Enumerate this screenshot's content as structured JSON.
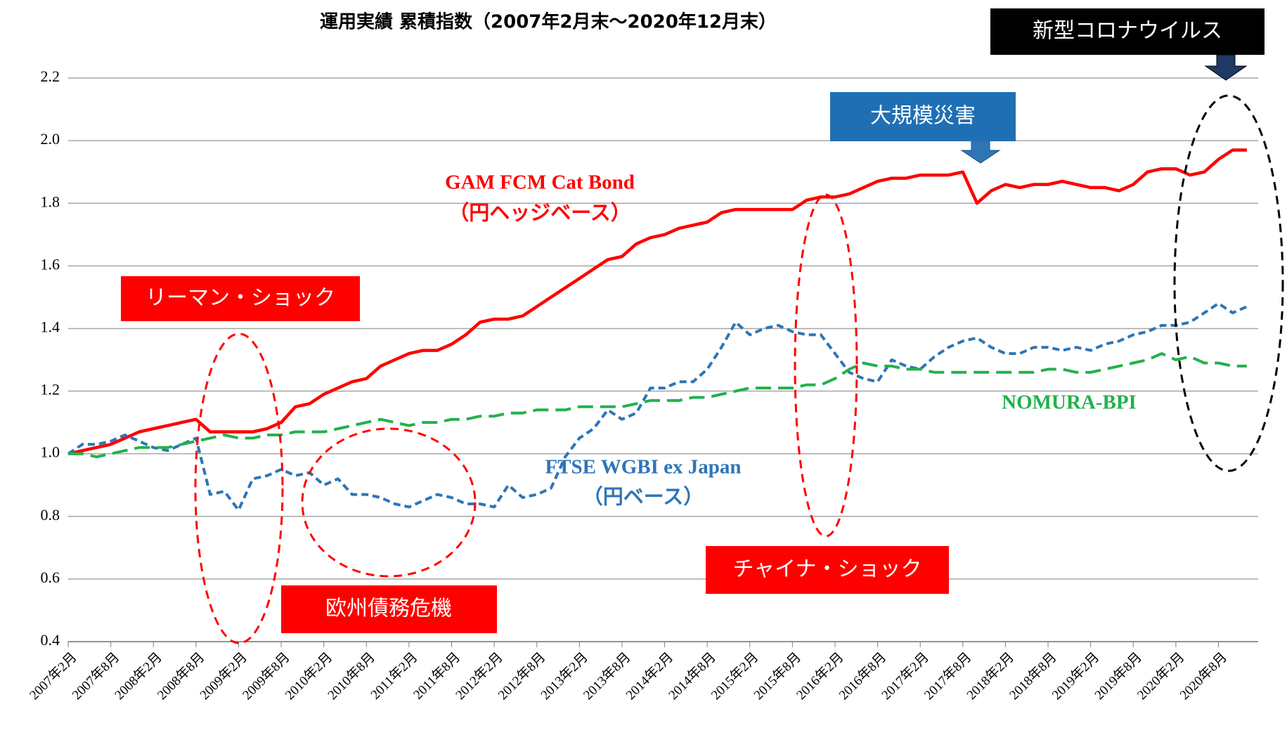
{
  "chart_data": {
    "type": "line",
    "title": "運用実績 累積指数（2007年2月末～2020年12月末）",
    "categories": [
      "2007年2月",
      null,
      null,
      "2007年8月",
      null,
      null,
      "2008年2月",
      null,
      null,
      "2008年8月",
      null,
      null,
      "2009年2月",
      null,
      null,
      "2009年8月",
      null,
      null,
      "2010年2月",
      null,
      null,
      "2010年8月",
      null,
      null,
      "2011年2月",
      null,
      null,
      "2011年8月",
      null,
      null,
      "2012年2月",
      null,
      null,
      "2012年8月",
      null,
      null,
      "2013年2月",
      null,
      null,
      "2013年8月",
      null,
      null,
      "2014年2月",
      null,
      null,
      "2014年8月",
      null,
      null,
      "2015年2月",
      null,
      null,
      "2015年8月",
      null,
      null,
      "2016年2月",
      null,
      null,
      "2016年8月",
      null,
      null,
      "2017年2月",
      null,
      null,
      "2017年8月",
      null,
      null,
      "2018年2月",
      null,
      null,
      "2018年8月",
      null,
      null,
      "2019年2月",
      null,
      null,
      "2019年8月",
      null,
      null,
      "2020年2月",
      null,
      null,
      "2020年8月",
      null,
      null
    ],
    "series": [
      {
        "name": "GAM FCM Cat  Bond",
        "subname": "（円ヘッジベース）",
        "color": "#ff0000",
        "values": [
          1.0,
          1.01,
          1.02,
          1.03,
          1.05,
          1.07,
          1.08,
          1.09,
          1.1,
          1.11,
          1.07,
          1.07,
          1.07,
          1.07,
          1.08,
          1.1,
          1.15,
          1.16,
          1.19,
          1.21,
          1.23,
          1.24,
          1.28,
          1.3,
          1.32,
          1.33,
          1.33,
          1.35,
          1.38,
          1.42,
          1.43,
          1.43,
          1.44,
          1.47,
          1.5,
          1.53,
          1.56,
          1.59,
          1.62,
          1.63,
          1.67,
          1.69,
          1.7,
          1.72,
          1.73,
          1.74,
          1.77,
          1.78,
          1.78,
          1.78,
          1.78,
          1.78,
          1.81,
          1.82,
          1.82,
          1.83,
          1.85,
          1.87,
          1.88,
          1.88,
          1.89,
          1.89,
          1.89,
          1.9,
          1.8,
          1.84,
          1.86,
          1.85,
          1.86,
          1.86,
          1.87,
          1.86,
          1.85,
          1.85,
          1.84,
          1.86,
          1.9,
          1.91,
          1.91,
          1.89,
          1.9,
          1.94,
          1.97,
          1.97
        ]
      },
      {
        "name": "FTSE WGBI ex Japan",
        "subname": "（円ベース）",
        "color": "#2e75b6",
        "values": [
          1.0,
          1.03,
          1.03,
          1.04,
          1.06,
          1.04,
          1.02,
          1.01,
          1.03,
          1.05,
          0.87,
          0.88,
          0.82,
          0.92,
          0.93,
          0.95,
          0.93,
          0.94,
          0.9,
          0.92,
          0.87,
          0.87,
          0.86,
          0.84,
          0.83,
          0.85,
          0.87,
          0.86,
          0.84,
          0.84,
          0.83,
          0.9,
          0.86,
          0.87,
          0.89,
          0.99,
          1.05,
          1.08,
          1.14,
          1.11,
          1.13,
          1.21,
          1.21,
          1.23,
          1.23,
          1.27,
          1.34,
          1.42,
          1.38,
          1.4,
          1.41,
          1.39,
          1.38,
          1.38,
          1.32,
          1.26,
          1.24,
          1.23,
          1.3,
          1.28,
          1.27,
          1.31,
          1.34,
          1.36,
          1.37,
          1.34,
          1.32,
          1.32,
          1.34,
          1.34,
          1.33,
          1.34,
          1.33,
          1.35,
          1.36,
          1.38,
          1.39,
          1.41,
          1.41,
          1.42,
          1.45,
          1.48,
          1.45,
          1.47
        ]
      },
      {
        "name": "NOMURA-BPI",
        "color": "#22b14c",
        "values": [
          1.0,
          1.0,
          0.99,
          1.0,
          1.01,
          1.02,
          1.02,
          1.02,
          1.03,
          1.04,
          1.05,
          1.06,
          1.05,
          1.05,
          1.06,
          1.06,
          1.07,
          1.07,
          1.07,
          1.08,
          1.09,
          1.1,
          1.11,
          1.1,
          1.09,
          1.1,
          1.1,
          1.11,
          1.11,
          1.12,
          1.12,
          1.13,
          1.13,
          1.14,
          1.14,
          1.14,
          1.15,
          1.15,
          1.15,
          1.15,
          1.16,
          1.17,
          1.17,
          1.17,
          1.18,
          1.18,
          1.19,
          1.2,
          1.21,
          1.21,
          1.21,
          1.21,
          1.22,
          1.22,
          1.24,
          1.27,
          1.29,
          1.28,
          1.28,
          1.27,
          1.27,
          1.26,
          1.26,
          1.26,
          1.26,
          1.26,
          1.26,
          1.26,
          1.26,
          1.27,
          1.27,
          1.26,
          1.26,
          1.27,
          1.28,
          1.29,
          1.3,
          1.32,
          1.3,
          1.31,
          1.29,
          1.29,
          1.28,
          1.28
        ]
      }
    ],
    "ylim": [
      0.4,
      2.2
    ],
    "yticks": [
      0.4,
      0.6,
      0.8,
      {
        "value": 1.0,
        "label": "1.0"
      },
      1.2,
      1.4,
      1.6,
      1.8,
      {
        "value": 2.0,
        "label": "2.0"
      },
      2.2
    ],
    "grid": true,
    "annotations": [
      "リーマン・ショック",
      "欧州債務危機",
      "チャイナ・ショック",
      "大規模災害",
      "新型コロナウイルス"
    ]
  }
}
